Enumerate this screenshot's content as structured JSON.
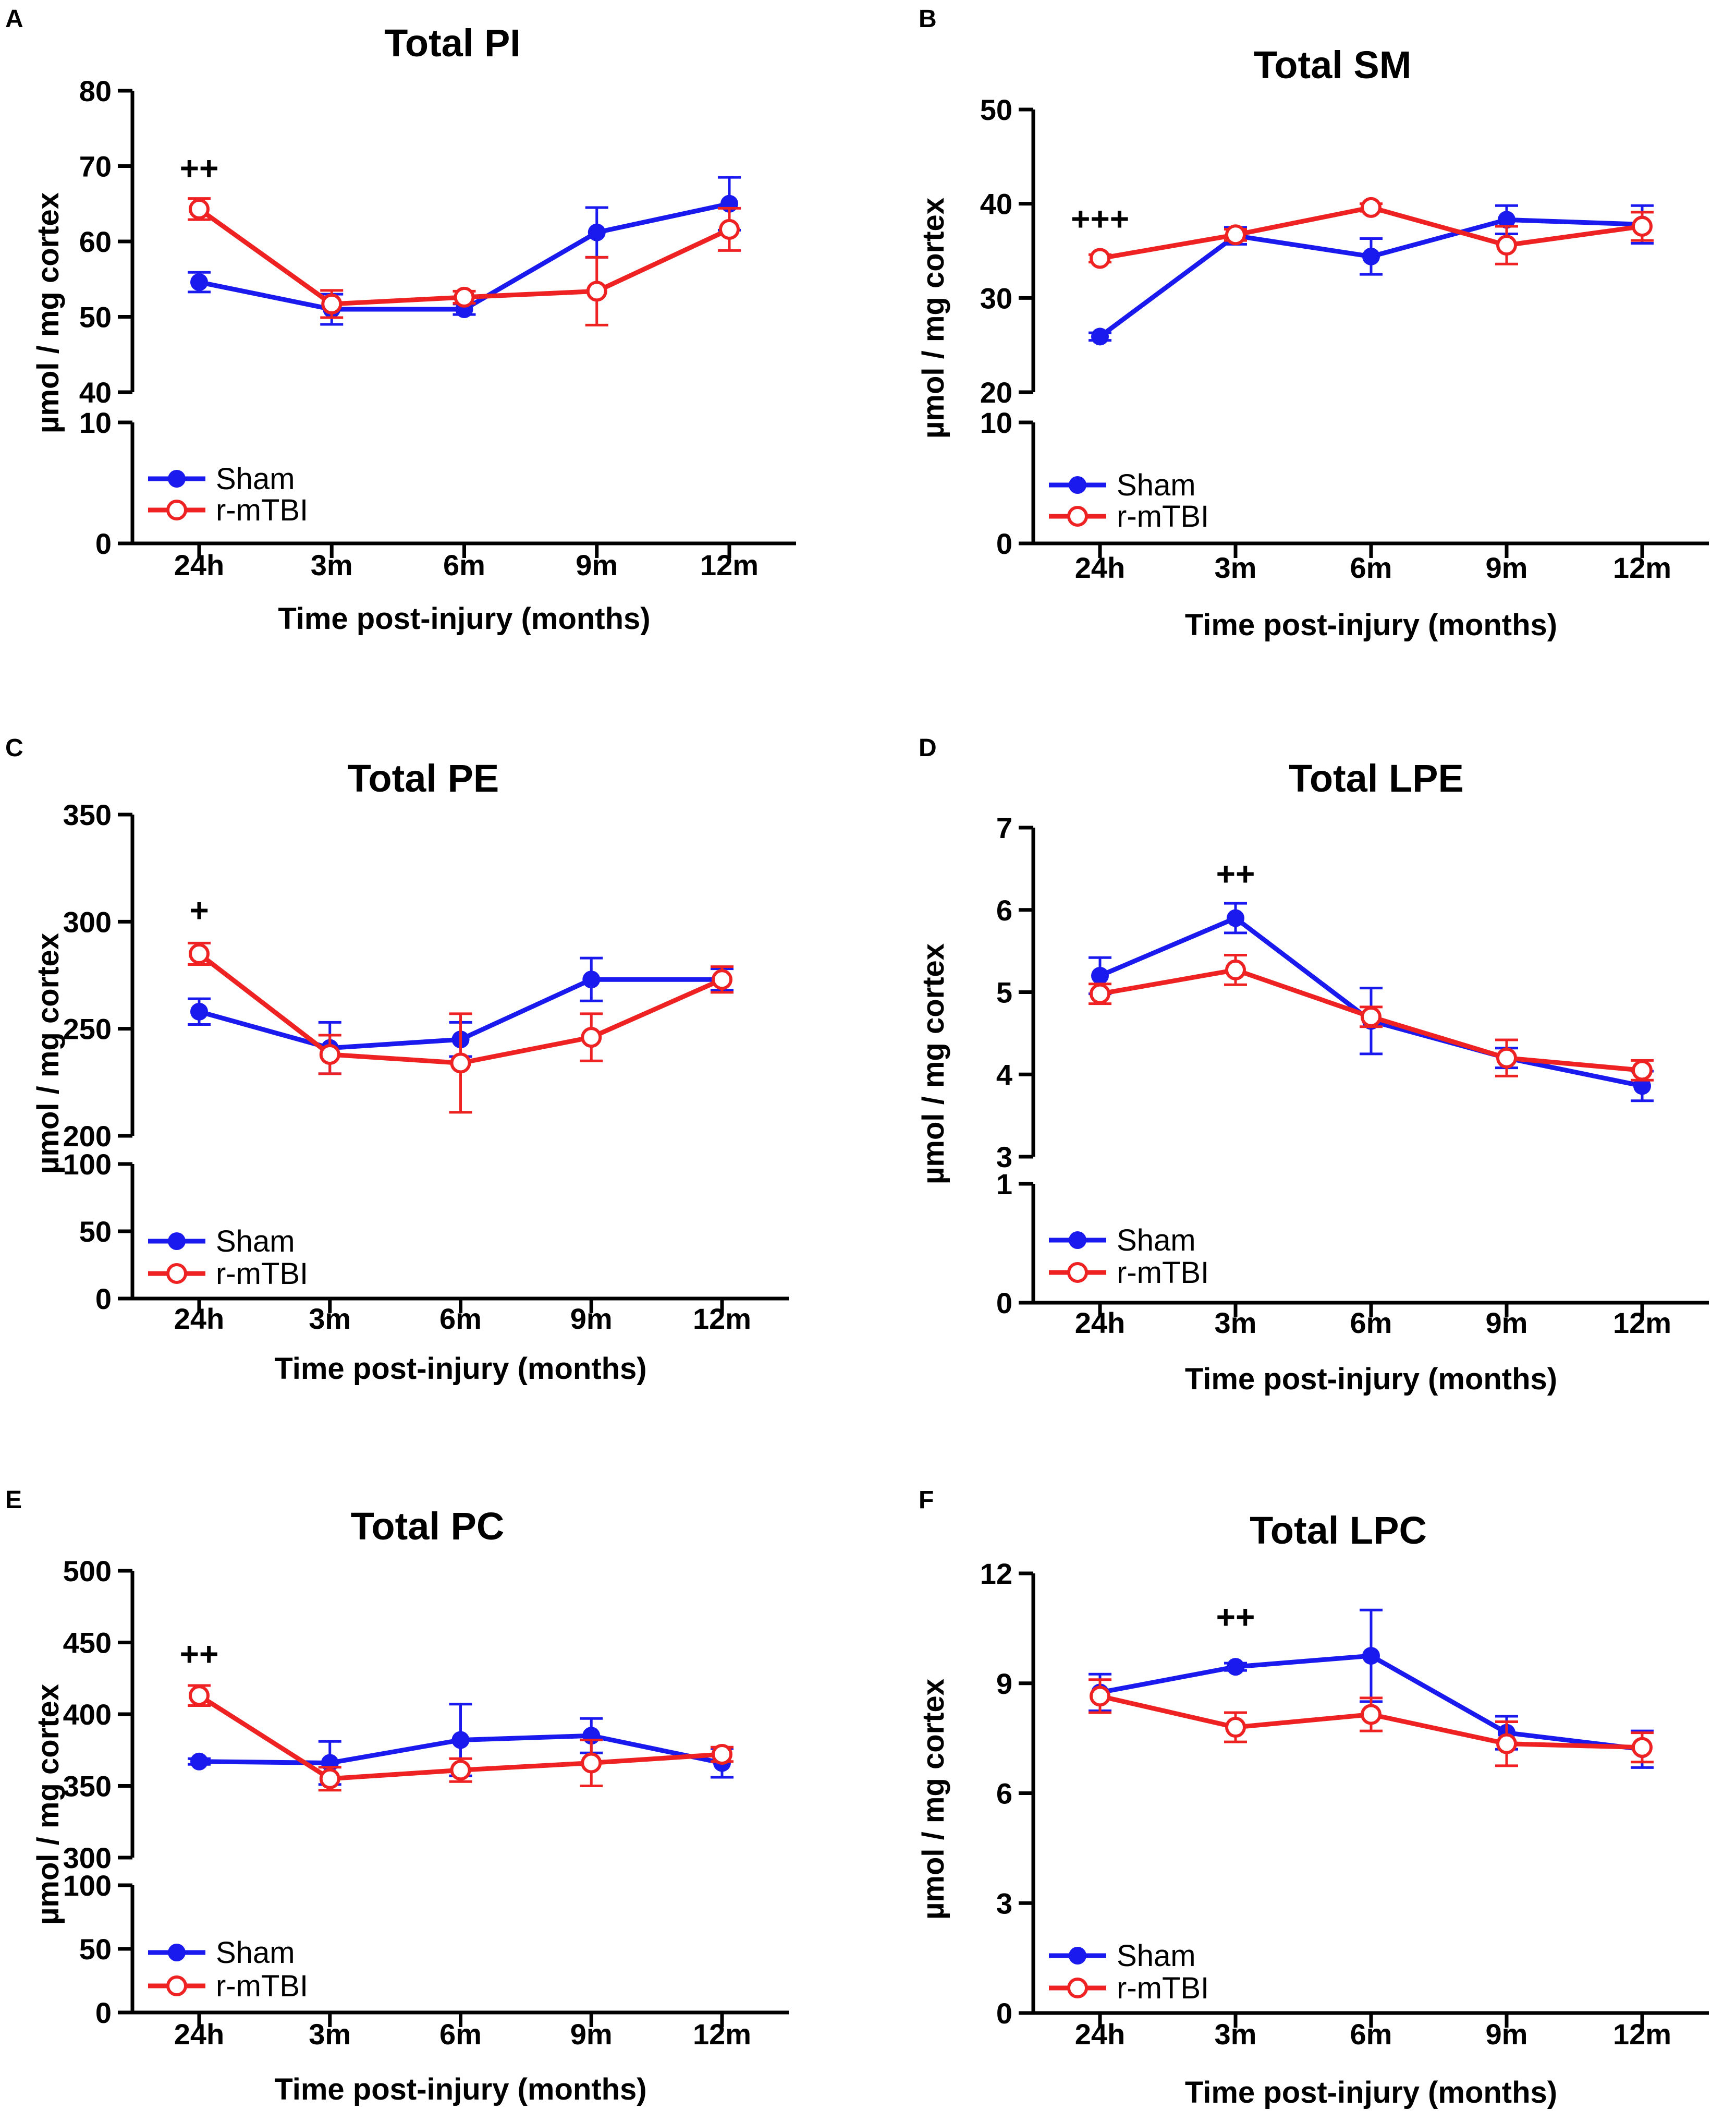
{
  "figure": {
    "time_points": [
      "24h",
      "3m",
      "6m",
      "9m",
      "12m"
    ],
    "colors": {
      "sham": "#1a1aee",
      "rmtbi": "#ee2222",
      "axis": "#000000"
    }
  },
  "chart_data": [
    {
      "type": "line",
      "panel_label": "A",
      "title": "Total PI",
      "xlabel": "Time post-injury (months)",
      "ylabel": "µmol / mg cortex",
      "categories": [
        "24h",
        "3m",
        "6m",
        "9m",
        "12m"
      ],
      "broken_axis": true,
      "ylim_lower": [
        0,
        10
      ],
      "yticks_lower": [
        0,
        10
      ],
      "ylim_upper": [
        40,
        80
      ],
      "yticks_upper": [
        40,
        50,
        60,
        70,
        80
      ],
      "series": [
        {
          "name": "Sham",
          "marker": "filled",
          "values": [
            54.6,
            51.0,
            51.0,
            61.2,
            65.0
          ],
          "errors": [
            1.3,
            2.0,
            0.7,
            3.3,
            3.5
          ]
        },
        {
          "name": "r-mTBI",
          "marker": "open",
          "values": [
            64.3,
            51.7,
            52.6,
            53.4,
            61.6
          ],
          "errors": [
            1.4,
            1.8,
            0.8,
            4.5,
            2.8
          ]
        }
      ],
      "annotations": [
        {
          "text": "++",
          "category": "24h",
          "y": 68.2
        }
      ]
    },
    {
      "type": "line",
      "panel_label": "B",
      "title": "Total SM",
      "xlabel": "Time post-injury (months)",
      "ylabel": "µmol / mg cortex",
      "categories": [
        "24h",
        "3m",
        "6m",
        "9m",
        "12m"
      ],
      "broken_axis": true,
      "ylim_lower": [
        0,
        10
      ],
      "yticks_lower": [
        0,
        10
      ],
      "ylim_upper": [
        20,
        50
      ],
      "yticks_upper": [
        20,
        30,
        40,
        50
      ],
      "series": [
        {
          "name": "Sham",
          "marker": "filled",
          "values": [
            25.9,
            36.6,
            34.4,
            38.3,
            37.8
          ],
          "errors": [
            0.4,
            0.9,
            1.9,
            1.5,
            2.0
          ]
        },
        {
          "name": "r-mTBI",
          "marker": "open",
          "values": [
            34.2,
            36.7,
            39.6,
            35.6,
            37.6
          ],
          "errors": [
            0.4,
            0.6,
            0.4,
            2.0,
            1.5
          ]
        }
      ],
      "annotations": [
        {
          "text": "+++",
          "category": "24h",
          "y": 37.2
        }
      ]
    },
    {
      "type": "line",
      "panel_label": "C",
      "title": "Total PE",
      "xlabel": "Time post-injury (months)",
      "ylabel": "µmol / mg cortex",
      "categories": [
        "24h",
        "3m",
        "6m",
        "9m",
        "12m"
      ],
      "broken_axis": true,
      "ylim_lower": [
        0,
        100
      ],
      "yticks_lower": [
        0,
        50,
        100
      ],
      "ylim_upper": [
        200,
        350
      ],
      "yticks_upper": [
        200,
        250,
        300,
        350
      ],
      "series": [
        {
          "name": "Sham",
          "marker": "filled",
          "values": [
            258,
            241,
            245,
            273,
            273
          ],
          "errors": [
            6,
            12,
            8,
            10,
            5
          ]
        },
        {
          "name": "r-mTBI",
          "marker": "open",
          "values": [
            285,
            238,
            234,
            246,
            273
          ],
          "errors": [
            5,
            9,
            23,
            11,
            6
          ]
        }
      ],
      "annotations": [
        {
          "text": "+",
          "category": "24h",
          "y": 300
        }
      ]
    },
    {
      "type": "line",
      "panel_label": "D",
      "title": "Total LPE",
      "xlabel": "Time post-injury (months)",
      "ylabel": "µmol / mg cortex",
      "categories": [
        "24h",
        "3m",
        "6m",
        "9m",
        "12m"
      ],
      "broken_axis": true,
      "ylim_lower": [
        0,
        1
      ],
      "yticks_lower": [
        0,
        1
      ],
      "ylim_upper": [
        3,
        7
      ],
      "yticks_upper": [
        3,
        4,
        5,
        6,
        7
      ],
      "series": [
        {
          "name": "Sham",
          "marker": "filled",
          "values": [
            5.2,
            5.9,
            4.65,
            4.2,
            3.86
          ],
          "errors": [
            0.22,
            0.18,
            0.4,
            0.12,
            0.18
          ]
        },
        {
          "name": "r-mTBI",
          "marker": "open",
          "values": [
            4.98,
            5.27,
            4.7,
            4.2,
            4.05
          ],
          "errors": [
            0.12,
            0.18,
            0.12,
            0.22,
            0.12
          ]
        }
      ],
      "annotations": [
        {
          "text": "++",
          "category": "3m",
          "y": 6.3
        }
      ]
    },
    {
      "type": "line",
      "panel_label": "E",
      "title": "Total PC",
      "xlabel": "Time post-injury (months)",
      "ylabel": "µmol / mg cortex",
      "categories": [
        "24h",
        "3m",
        "6m",
        "9m",
        "12m"
      ],
      "broken_axis": true,
      "ylim_lower": [
        0,
        100
      ],
      "yticks_lower": [
        0,
        50,
        100
      ],
      "ylim_upper": [
        300,
        500
      ],
      "yticks_upper": [
        300,
        350,
        400,
        450,
        500
      ],
      "series": [
        {
          "name": "Sham",
          "marker": "filled",
          "values": [
            367,
            366,
            382,
            385,
            366
          ],
          "errors": [
            2,
            15,
            25,
            12,
            10
          ]
        },
        {
          "name": "r-mTBI",
          "marker": "open",
          "values": [
            413,
            355,
            361,
            366,
            372
          ],
          "errors": [
            7,
            8,
            8,
            16,
            5
          ]
        }
      ],
      "annotations": [
        {
          "text": "++",
          "category": "24h",
          "y": 434
        }
      ]
    },
    {
      "type": "line",
      "panel_label": "F",
      "title": "Total LPC",
      "xlabel": "Time post-injury (months)",
      "ylabel": "µmol / mg cortex",
      "categories": [
        "24h",
        "3m",
        "6m",
        "9m",
        "12m"
      ],
      "broken_axis": false,
      "ylim": [
        0,
        12
      ],
      "yticks": [
        0,
        3,
        6,
        9,
        12
      ],
      "series": [
        {
          "name": "Sham",
          "marker": "filled",
          "values": [
            8.75,
            9.45,
            9.75,
            7.65,
            7.2
          ],
          "errors": [
            0.5,
            0.1,
            1.25,
            0.45,
            0.5
          ]
        },
        {
          "name": "r-mTBI",
          "marker": "open",
          "values": [
            8.65,
            7.8,
            8.15,
            7.35,
            7.25
          ],
          "errors": [
            0.45,
            0.4,
            0.45,
            0.6,
            0.4
          ]
        }
      ],
      "annotations": [
        {
          "text": "++",
          "category": "3m",
          "y": 10.5
        }
      ]
    }
  ]
}
